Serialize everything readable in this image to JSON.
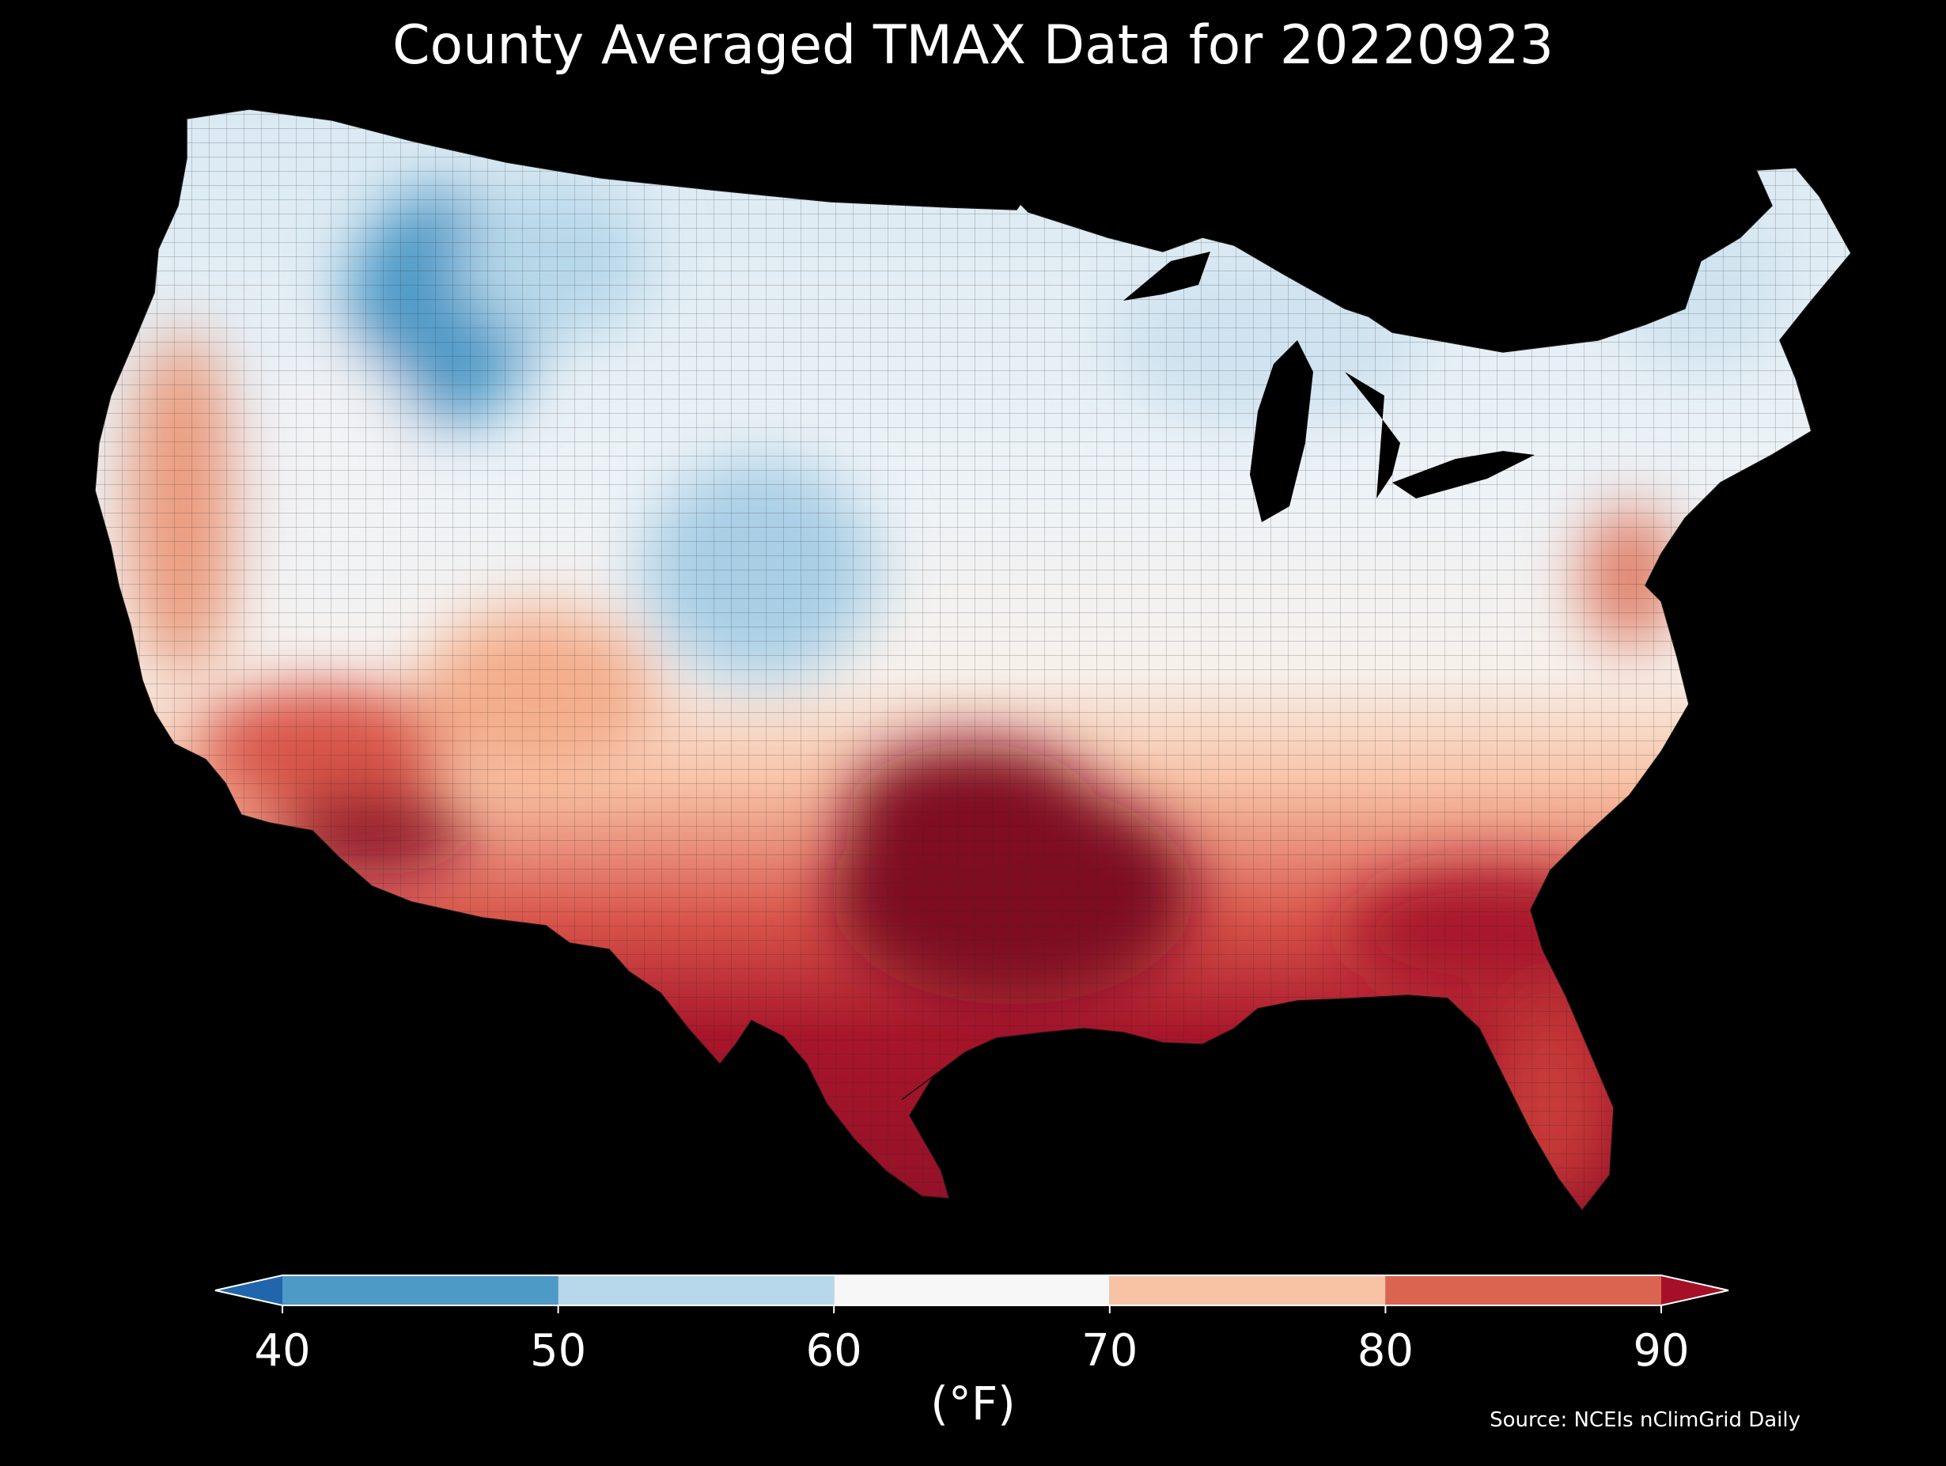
{
  "title": "County Averaged TMAX Data for 20220923",
  "colorbar": {
    "unit_label": "(°F)",
    "ticks": [
      "40",
      "50",
      "60",
      "70",
      "80",
      "90"
    ],
    "bins": [
      {
        "from": null,
        "to": 40,
        "color": "#2166ac"
      },
      {
        "from": 40,
        "to": 50,
        "color": "#4d9ac7"
      },
      {
        "from": 50,
        "to": 60,
        "color": "#b7d8ea"
      },
      {
        "from": 60,
        "to": 70,
        "color": "#f7f7f7"
      },
      {
        "from": 70,
        "to": 80,
        "color": "#f8c2a5"
      },
      {
        "from": 80,
        "to": 90,
        "color": "#db6451"
      },
      {
        "from": 90,
        "to": null,
        "color": "#a50f27"
      }
    ]
  },
  "source": "Source: NCEIs nClimGrid Daily",
  "map": {
    "region": "Contiguous United States",
    "unit_of_display": "county",
    "colors": {
      "ocean_background": "#000000",
      "county_border": "#222222"
    },
    "regional_values": [
      {
        "region": "Northern Rockies (ID/MT/WY)",
        "band": "40-50",
        "color": "#4d9ac7"
      },
      {
        "region": "Central Plains / Colorado",
        "band": "50-60",
        "color": "#b7d8ea"
      },
      {
        "region": "Upper Midwest / Great Lakes",
        "band": "50-60",
        "color": "#d6e7f1"
      },
      {
        "region": "New England",
        "band": "50-60",
        "color": "#d9e9f3"
      },
      {
        "region": "Great Basin",
        "band": "60-70",
        "color": "#eef3f7"
      },
      {
        "region": "Ohio Valley",
        "band": "60-70",
        "color": "#f5ede7"
      },
      {
        "region": "Pacific Coast",
        "band": "70-80",
        "color": "#f2a98b"
      },
      {
        "region": "Desert Southwest",
        "band": "80-90",
        "color": "#d9544a"
      },
      {
        "region": "Southern Arizona",
        "band": ">90",
        "color": "#8c0d25"
      },
      {
        "region": "Texas / Gulf Coast",
        "band": ">90",
        "color": "#8f1027"
      },
      {
        "region": "Southeast",
        "band": "80-90",
        "color": "#b41f2c"
      },
      {
        "region": "Florida",
        "band": "80-90",
        "color": "#c42f33"
      }
    ]
  }
}
